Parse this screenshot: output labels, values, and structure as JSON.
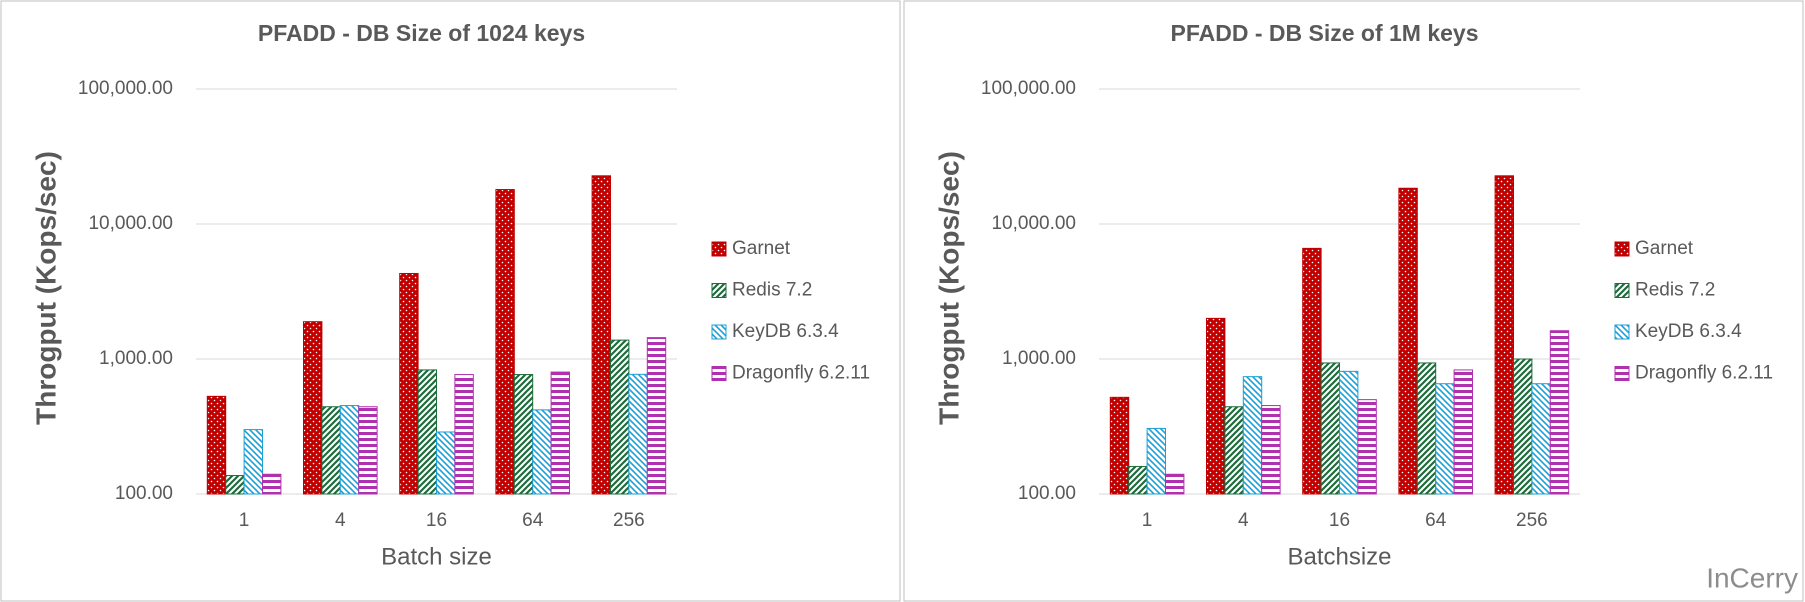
{
  "chart_data": [
    {
      "type": "bar",
      "title": "PFADD - DB Size of 1024  keys",
      "x_label": "Batch size",
      "y_label": "Throgput (Kops/sec)",
      "categories": [
        "1",
        "4",
        "16",
        "64",
        "256"
      ],
      "log_scale": true,
      "grid": true,
      "legend": "right",
      "ylim": [
        100,
        100000
      ],
      "yticks": [
        {
          "value": 100,
          "label": "100.00"
        },
        {
          "value": 1000,
          "label": "1,000.00"
        },
        {
          "value": 10000,
          "label": "10,000.00"
        },
        {
          "value": 100000,
          "label": "100,000.00"
        }
      ],
      "series": [
        {
          "name": "Garnet",
          "color": "#c00000",
          "pattern": "dots",
          "values": [
            529,
            1890,
            4300,
            18000,
            22750
          ]
        },
        {
          "name": "Redis 7.2",
          "color": "#1e6b3c",
          "pattern": "diagonal",
          "values": [
            137,
            443,
            830,
            767,
            1380
          ]
        },
        {
          "name": "KeyDB 6.3.4",
          "color": "#1ca0d8",
          "pattern": "diagonal-reverse",
          "values": [
            300,
            452,
            288,
            420,
            770
          ]
        },
        {
          "name": "Dragonfly 6.2.11",
          "color": "#b030b0",
          "pattern": "horizontal",
          "values": [
            140,
            443,
            767,
            800,
            1440
          ]
        }
      ]
    },
    {
      "type": "bar",
      "title": "PFADD - DB Size of 1M  keys",
      "x_label": "Batchsize",
      "y_label": "Throgput (Kops/sec)",
      "categories": [
        "1",
        "4",
        "16",
        "64",
        "256"
      ],
      "log_scale": true,
      "grid": true,
      "legend": "right",
      "ylim": [
        100,
        100000
      ],
      "yticks": [
        {
          "value": 100,
          "label": "100.00"
        },
        {
          "value": 1000,
          "label": "1,000.00"
        },
        {
          "value": 10000,
          "label": "10,000.00"
        },
        {
          "value": 100000,
          "label": "100,000.00"
        }
      ],
      "series": [
        {
          "name": "Garnet",
          "color": "#c00000",
          "pattern": "dots",
          "values": [
            520,
            2000,
            6600,
            18400,
            22750
          ]
        },
        {
          "name": "Redis 7.2",
          "color": "#1e6b3c",
          "pattern": "diagonal",
          "values": [
            160,
            443,
            935,
            935,
            1000
          ]
        },
        {
          "name": "KeyDB 6.3.4",
          "color": "#1ca0d8",
          "pattern": "diagonal-reverse",
          "values": [
            306,
            740,
            810,
            656,
            656
          ]
        },
        {
          "name": "Dragonfly 6.2.11",
          "color": "#b030b0",
          "pattern": "horizontal",
          "values": [
            140,
            452,
            500,
            830,
            1620
          ]
        }
      ]
    }
  ],
  "watermark": "InCerry"
}
